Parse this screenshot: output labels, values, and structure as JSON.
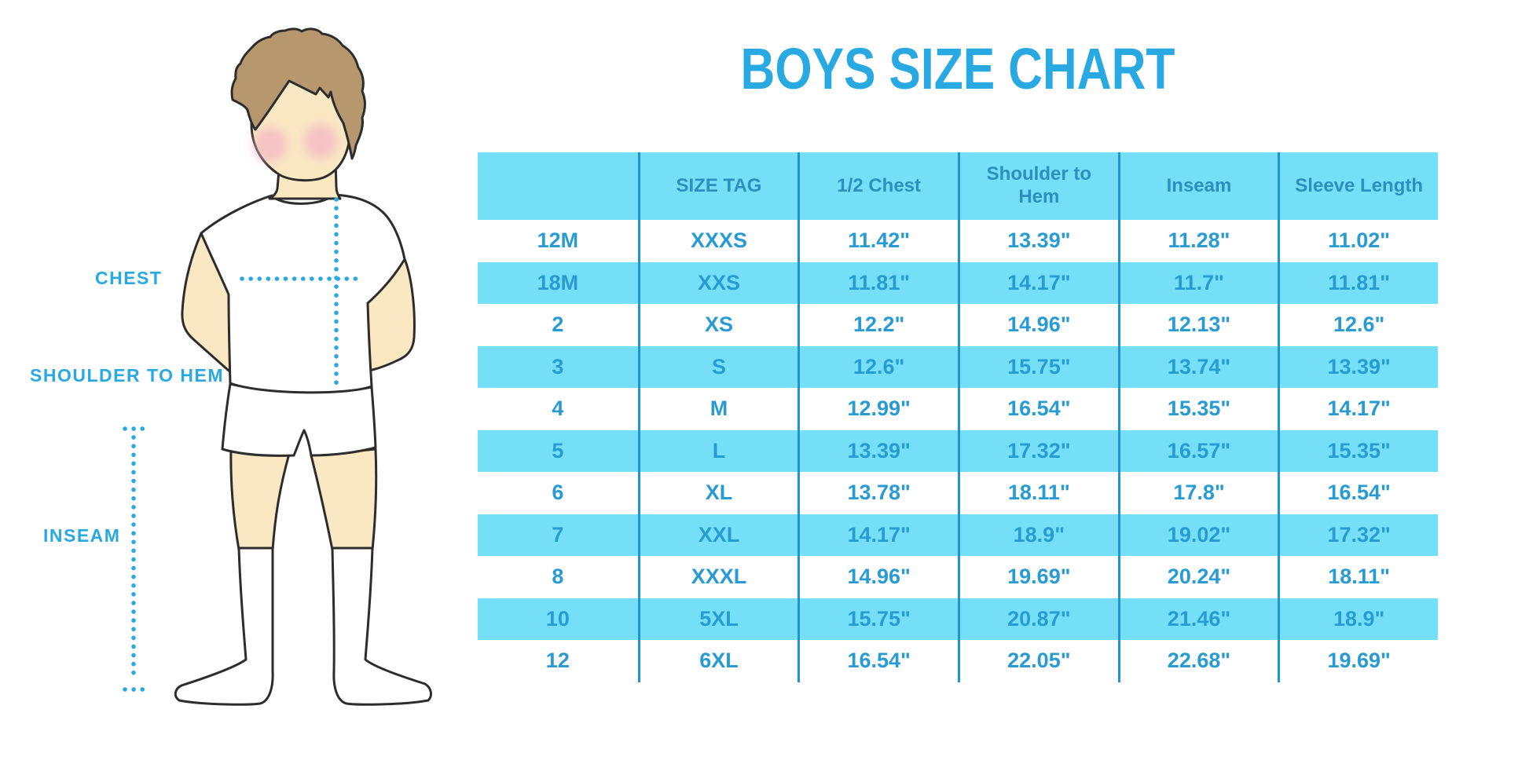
{
  "title": "BOYS SIZE CHART",
  "diagram": {
    "chest_label": "CHEST",
    "shoulder_to_hem_label": "SHOULDER TO HEM",
    "inseam_label": "INSEAM"
  },
  "colors": {
    "accent": "#29A9E1",
    "table_fill": "#76DFF8",
    "line_blue": "#1E95CD",
    "header_text": "#2D8FBE",
    "cell_text": "#299BD3",
    "skin": "#FAE8C3",
    "hair": "#B6976E",
    "blush": "#F3AFC5",
    "outline": "#2D2D2D"
  },
  "chart_data": {
    "type": "table",
    "title": "BOYS SIZE CHART",
    "columns": [
      "",
      "SIZE TAG",
      "1/2 Chest",
      "Shoulder to Hem",
      "Inseam",
      "Sleeve Length"
    ],
    "rows": [
      [
        "12M",
        "XXXS",
        "11.42\"",
        "13.39\"",
        "11.28\"",
        "11.02\""
      ],
      [
        "18M",
        "XXS",
        "11.81\"",
        "14.17\"",
        "11.7\"",
        "11.81\""
      ],
      [
        "2",
        "XS",
        "12.2\"",
        "14.96\"",
        "12.13\"",
        "12.6\""
      ],
      [
        "3",
        "S",
        "12.6\"",
        "15.75\"",
        "13.74\"",
        "13.39\""
      ],
      [
        "4",
        "M",
        "12.99\"",
        "16.54\"",
        "15.35\"",
        "14.17\""
      ],
      [
        "5",
        "L",
        "13.39\"",
        "17.32\"",
        "16.57\"",
        "15.35\""
      ],
      [
        "6",
        "XL",
        "13.78\"",
        "18.11\"",
        "17.8\"",
        "16.54\""
      ],
      [
        "7",
        "XXL",
        "14.17\"",
        "18.9\"",
        "19.02\"",
        "17.32\""
      ],
      [
        "8",
        "XXXL",
        "14.96\"",
        "19.69\"",
        "20.24\"",
        "18.11\""
      ],
      [
        "10",
        "5XL",
        "15.75\"",
        "20.87\"",
        "21.46\"",
        "18.9\""
      ],
      [
        "12",
        "6XL",
        "16.54\"",
        "22.05\"",
        "22.68\"",
        "19.69\""
      ]
    ]
  }
}
